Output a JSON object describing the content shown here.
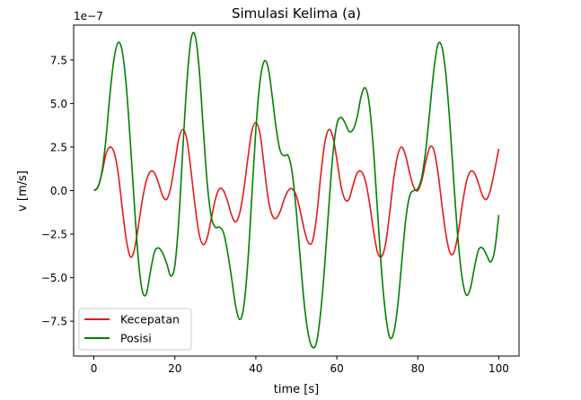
{
  "chart_data": {
    "type": "line",
    "title": "Simulasi Kelima (a)",
    "xlabel": "time [s]",
    "ylabel": "v [m/s]",
    "offset_text": "1e−7",
    "scale": 1e-07,
    "xlim": [
      -5,
      105
    ],
    "ylim": [
      -9.5,
      9.5
    ],
    "x_ticks": [
      0,
      20,
      40,
      60,
      80,
      100
    ],
    "x_tick_labels": [
      "0",
      "20",
      "40",
      "60",
      "80",
      "100"
    ],
    "y_ticks": [
      -7.5,
      -5.0,
      -2.5,
      0.0,
      2.5,
      5.0,
      7.5
    ],
    "y_tick_labels": [
      "−7.5",
      "−5.0",
      "−2.5",
      "0.0",
      "2.5",
      "5.0",
      "7.5"
    ],
    "grid": false,
    "legend": "lower-left",
    "series": [
      {
        "name": "Kecepatan",
        "color": "#e41a1c",
        "points": [
          [
            0,
            0.0
          ],
          [
            1,
            0.2
          ],
          [
            2,
            1.0
          ],
          [
            3,
            2.1
          ],
          [
            4,
            2.5
          ],
          [
            5,
            2.2
          ],
          [
            6,
            1.0
          ],
          [
            7,
            -1.0
          ],
          [
            8,
            -2.8
          ],
          [
            9,
            -3.8
          ],
          [
            10,
            -3.4
          ],
          [
            11,
            -2.0
          ],
          [
            12,
            -0.5
          ],
          [
            13,
            0.6
          ],
          [
            14,
            1.1
          ],
          [
            15,
            1.0
          ],
          [
            16,
            0.4
          ],
          [
            17,
            -0.3
          ],
          [
            18,
            -0.5
          ],
          [
            19,
            0.2
          ],
          [
            20,
            1.6
          ],
          [
            21,
            3.0
          ],
          [
            22,
            3.5
          ],
          [
            23,
            2.9
          ],
          [
            24,
            1.1
          ],
          [
            25,
            -0.9
          ],
          [
            26,
            -2.5
          ],
          [
            27,
            -3.1
          ],
          [
            28,
            -2.7
          ],
          [
            29,
            -1.6
          ],
          [
            30,
            -0.5
          ],
          [
            31,
            0.1
          ],
          [
            32,
            0.0
          ],
          [
            33,
            -0.6
          ],
          [
            34,
            -1.4
          ],
          [
            35,
            -1.8
          ],
          [
            36,
            -1.3
          ],
          [
            37,
            0.0
          ],
          [
            38,
            1.8
          ],
          [
            39,
            3.4
          ],
          [
            40,
            3.9
          ],
          [
            41,
            3.3
          ],
          [
            42,
            1.5
          ],
          [
            43,
            -0.4
          ],
          [
            44,
            -1.4
          ],
          [
            45,
            -1.6
          ],
          [
            46,
            -1.2
          ],
          [
            47,
            -0.5
          ],
          [
            48,
            0.0
          ],
          [
            49,
            0.1
          ],
          [
            50,
            -0.3
          ],
          [
            51,
            -1.2
          ],
          [
            52,
            -2.3
          ],
          [
            53,
            -3.0
          ],
          [
            54,
            -2.9
          ],
          [
            55,
            -1.5
          ],
          [
            56,
            0.8
          ],
          [
            57,
            2.7
          ],
          [
            58,
            3.5
          ],
          [
            59,
            3.1
          ],
          [
            60,
            1.8
          ],
          [
            61,
            0.3
          ],
          [
            62,
            -0.5
          ],
          [
            63,
            -0.5
          ],
          [
            64,
            0.3
          ],
          [
            65,
            1.0
          ],
          [
            66,
            1.1
          ],
          [
            67,
            0.6
          ],
          [
            68,
            -0.6
          ],
          [
            69,
            -2.2
          ],
          [
            70,
            -3.5
          ],
          [
            71,
            -3.8
          ],
          [
            72,
            -3.1
          ],
          [
            73,
            -1.4
          ],
          [
            74,
            0.6
          ],
          [
            75,
            2.0
          ],
          [
            76,
            2.5
          ],
          [
            77,
            2.0
          ],
          [
            78,
            1.0
          ],
          [
            79,
            0.2
          ],
          [
            80,
            0.0
          ],
          [
            81,
            0.6
          ],
          [
            82,
            1.7
          ],
          [
            83,
            2.5
          ],
          [
            84,
            2.3
          ],
          [
            85,
            1.0
          ],
          [
            86,
            -0.9
          ],
          [
            87,
            -2.6
          ],
          [
            88,
            -3.6
          ],
          [
            89,
            -3.5
          ],
          [
            90,
            -2.4
          ],
          [
            91,
            -0.8
          ],
          [
            92,
            0.5
          ],
          [
            93,
            1.1
          ],
          [
            94,
            1.0
          ],
          [
            95,
            0.4
          ],
          [
            96,
            -0.3
          ],
          [
            97,
            -0.5
          ],
          [
            98,
            0.1
          ],
          [
            99,
            1.2
          ],
          [
            100,
            2.4
          ]
        ]
      },
      {
        "name": "Posisi",
        "color": "#008000",
        "points": [
          [
            0,
            0.0
          ],
          [
            1,
            0.2
          ],
          [
            2,
            1.1
          ],
          [
            3,
            3.0
          ],
          [
            4,
            5.6
          ],
          [
            5,
            7.6
          ],
          [
            6,
            8.5
          ],
          [
            7,
            8.0
          ],
          [
            8,
            6.0
          ],
          [
            9,
            2.8
          ],
          [
            10,
            -0.8
          ],
          [
            11,
            -4.0
          ],
          [
            12,
            -5.8
          ],
          [
            13,
            -5.9
          ],
          [
            14,
            -4.6
          ],
          [
            15,
            -3.5
          ],
          [
            16,
            -3.3
          ],
          [
            17,
            -3.6
          ],
          [
            18,
            -4.2
          ],
          [
            19,
            -4.9
          ],
          [
            20,
            -4.3
          ],
          [
            21,
            -1.6
          ],
          [
            22,
            2.5
          ],
          [
            23,
            6.3
          ],
          [
            24,
            8.7
          ],
          [
            25,
            8.9
          ],
          [
            26,
            7.0
          ],
          [
            27,
            3.6
          ],
          [
            28,
            0.4
          ],
          [
            29,
            -1.5
          ],
          [
            30,
            -2.1
          ],
          [
            31,
            -2.1
          ],
          [
            32,
            -2.4
          ],
          [
            33,
            -3.5
          ],
          [
            34,
            -5.0
          ],
          [
            35,
            -6.6
          ],
          [
            36,
            -7.4
          ],
          [
            37,
            -6.7
          ],
          [
            38,
            -4.2
          ],
          [
            39,
            -0.4
          ],
          [
            40,
            3.5
          ],
          [
            41,
            6.2
          ],
          [
            42,
            7.4
          ],
          [
            43,
            7.1
          ],
          [
            44,
            5.5
          ],
          [
            45,
            3.6
          ],
          [
            46,
            2.3
          ],
          [
            47,
            2.0
          ],
          [
            48,
            2.0
          ],
          [
            49,
            1.0
          ],
          [
            50,
            -1.2
          ],
          [
            51,
            -4.0
          ],
          [
            52,
            -6.6
          ],
          [
            53,
            -8.3
          ],
          [
            54,
            -9.0
          ],
          [
            55,
            -8.7
          ],
          [
            56,
            -7.0
          ],
          [
            57,
            -4.3
          ],
          [
            58,
            -1.0
          ],
          [
            59,
            2.0
          ],
          [
            60,
            3.8
          ],
          [
            61,
            4.2
          ],
          [
            62,
            3.9
          ],
          [
            63,
            3.4
          ],
          [
            64,
            3.5
          ],
          [
            65,
            4.2
          ],
          [
            66,
            5.4
          ],
          [
            67,
            5.9
          ],
          [
            68,
            5.0
          ],
          [
            69,
            2.5
          ],
          [
            70,
            -1.0
          ],
          [
            71,
            -4.5
          ],
          [
            72,
            -7.0
          ],
          [
            73,
            -8.4
          ],
          [
            74,
            -8.2
          ],
          [
            75,
            -6.7
          ],
          [
            76,
            -4.2
          ],
          [
            77,
            -1.7
          ],
          [
            78,
            -0.3
          ],
          [
            79,
            0.0
          ],
          [
            80,
            0.1
          ],
          [
            81,
            0.8
          ],
          [
            82,
            2.4
          ],
          [
            83,
            4.7
          ],
          [
            84,
            7.0
          ],
          [
            85,
            8.4
          ],
          [
            86,
            8.2
          ],
          [
            87,
            6.5
          ],
          [
            88,
            3.6
          ],
          [
            89,
            0.1
          ],
          [
            90,
            -3.0
          ],
          [
            91,
            -5.1
          ],
          [
            92,
            -6.0
          ],
          [
            93,
            -5.6
          ],
          [
            94,
            -4.4
          ],
          [
            95,
            -3.4
          ],
          [
            96,
            -3.3
          ],
          [
            97,
            -3.7
          ],
          [
            98,
            -4.1
          ],
          [
            99,
            -3.4
          ],
          [
            100,
            -1.4
          ]
        ]
      }
    ]
  }
}
